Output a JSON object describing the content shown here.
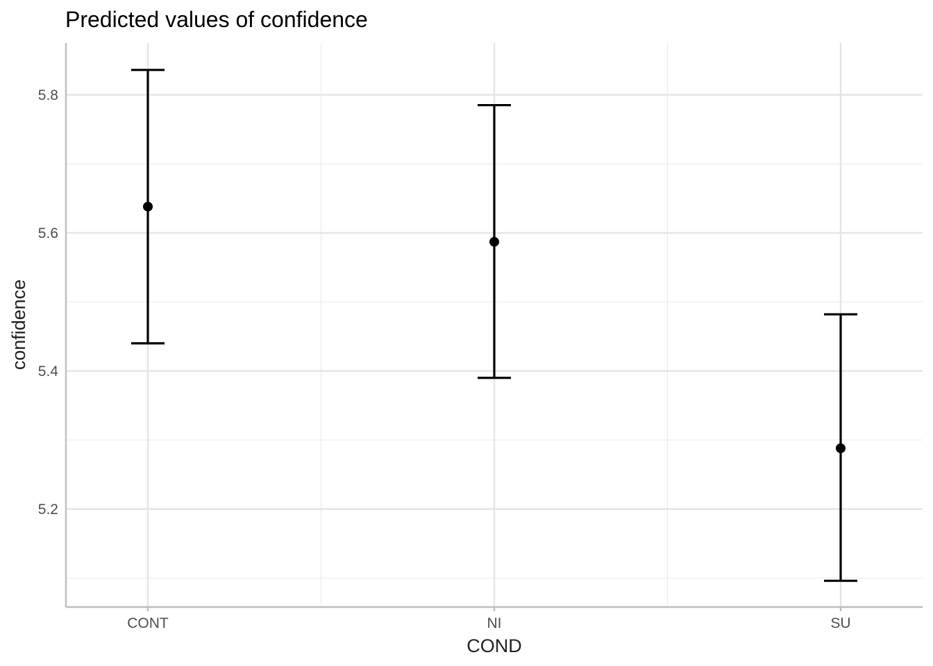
{
  "chart_data": {
    "type": "scatter",
    "title": "Predicted values of confidence",
    "xlabel": "COND",
    "ylabel": "confidence",
    "categories": [
      "CONT",
      "NI",
      "SU"
    ],
    "values": [
      5.638,
      5.587,
      5.288
    ],
    "conf_low": [
      5.44,
      5.39,
      5.096
    ],
    "conf_high": [
      5.836,
      5.785,
      5.482
    ],
    "ylim": [
      5.058,
      5.875
    ],
    "yticks": [
      5.2,
      5.4,
      5.6,
      5.8
    ],
    "ytick_labels": [
      "5.2",
      "5.4",
      "5.6",
      "5.8"
    ],
    "y_minor_ticks": [
      5.1,
      5.3,
      5.5,
      5.7
    ],
    "grid": true,
    "legend": "none",
    "colors": {
      "marks": "#000000",
      "grid": "#e5e5e5",
      "axis": "#bdbdbd"
    }
  }
}
